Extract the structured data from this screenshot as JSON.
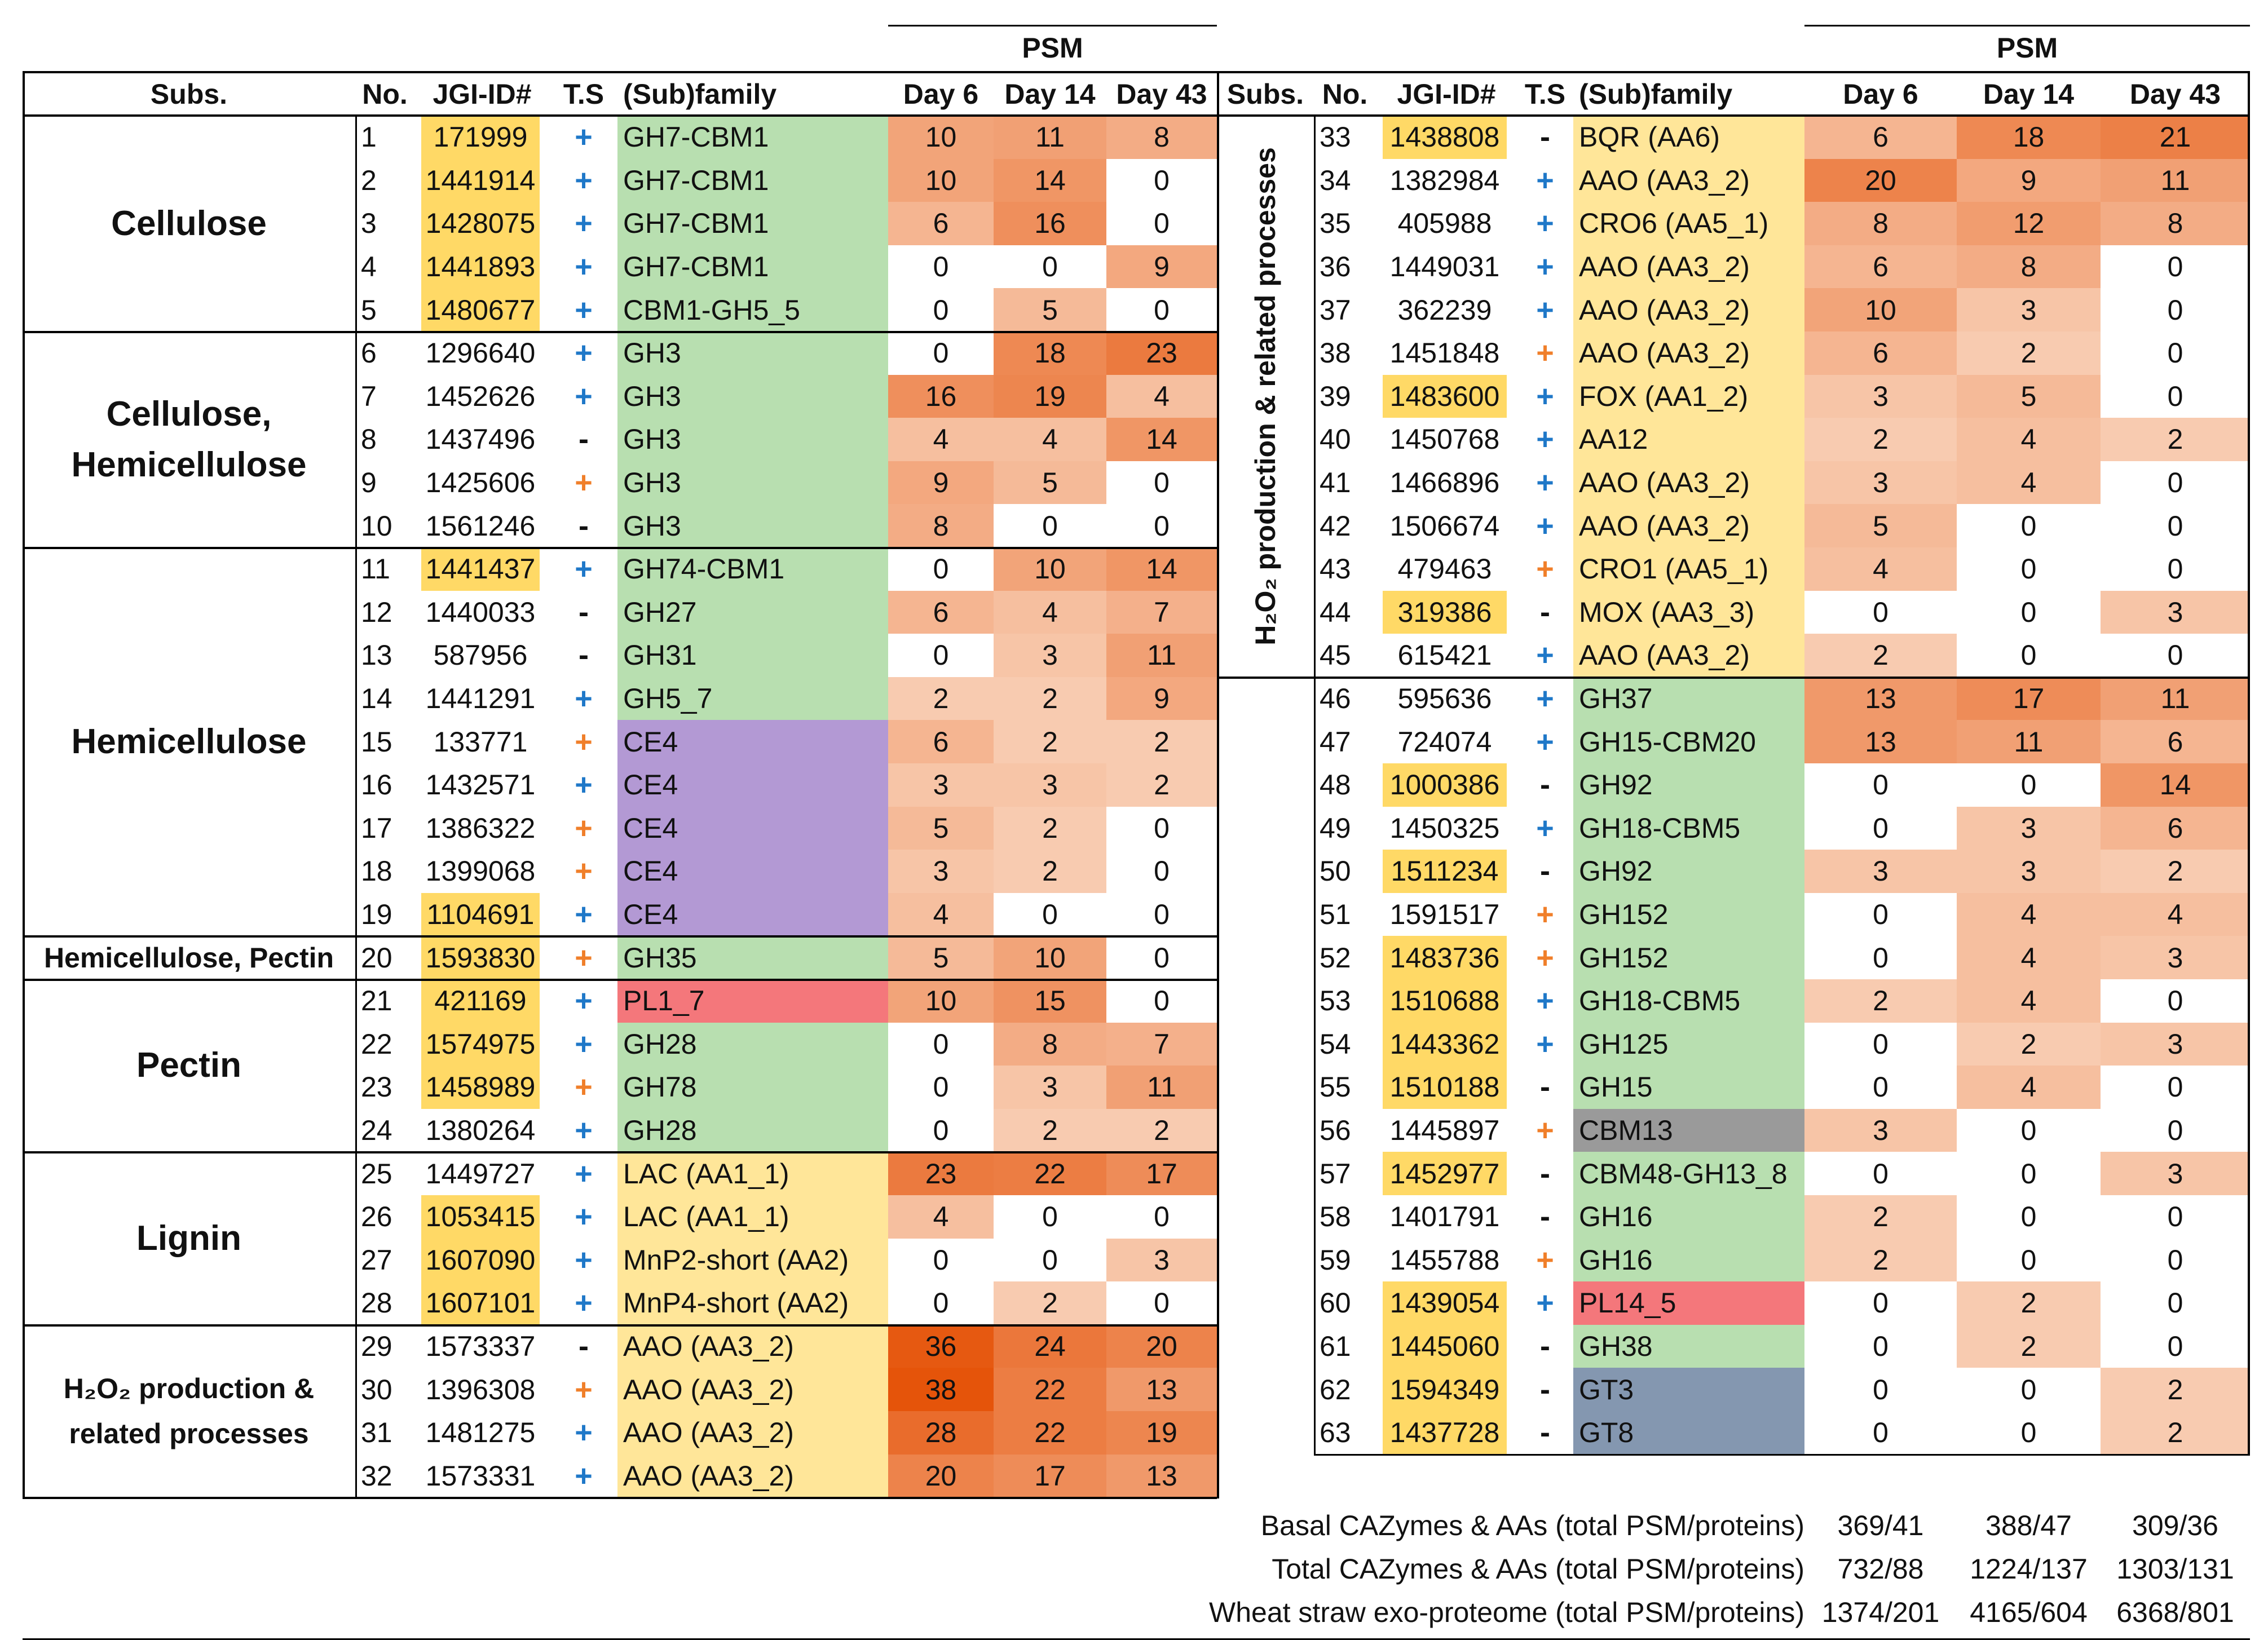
{
  "header": {
    "psm": "PSM",
    "subs": "Subs.",
    "no": "No.",
    "jgi": "JGI-ID#",
    "ts": "T.S",
    "family": "(Sub)family",
    "day6": "Day 6",
    "day14": "Day 14",
    "day43": "Day 43"
  },
  "left_groups": [
    {
      "label": "Cellulose",
      "first_row": 0,
      "rows": 5
    },
    {
      "label": "Cellulose,\nHemicellulose",
      "first_row": 5,
      "rows": 5
    },
    {
      "label": "Hemicellulose",
      "first_row": 10,
      "rows": 9
    },
    {
      "label": "Hemicellulose, Pectin",
      "first_row": 19,
      "rows": 1
    },
    {
      "label": "Pectin",
      "first_row": 20,
      "rows": 4
    },
    {
      "label": "Lignin",
      "first_row": 24,
      "rows": 4
    },
    {
      "label": "H₂O₂ production &\nrelated processes",
      "first_row": 28,
      "rows": 4
    }
  ],
  "right_group_label": "H₂O₂ production & related processes",
  "colors": {
    "id_highlight": "#ffd966",
    "blue_sign": "#1f78c8",
    "orange_sign": "#f07f2a",
    "fam_green": "#b8dfb0",
    "fam_purple": "#b399d4",
    "fam_red": "#f4777b",
    "fam_yellow": "#ffe699",
    "fam_gray": "#9a9a9a",
    "fam_blue": "#8497b0",
    "heat_max": "#e5540a"
  },
  "left_rows": [
    {
      "no": "1",
      "jgi": "171999",
      "hl": true,
      "ts": "+",
      "tsc": "blue",
      "fam": "GH7-CBM1",
      "fc": "green",
      "d6": "10",
      "d14": "11",
      "d43": "8"
    },
    {
      "no": "2",
      "jgi": "1441914",
      "hl": true,
      "ts": "+",
      "tsc": "blue",
      "fam": "GH7-CBM1",
      "fc": "green",
      "d6": "10",
      "d14": "14",
      "d43": "0"
    },
    {
      "no": "3",
      "jgi": "1428075",
      "hl": true,
      "ts": "+",
      "tsc": "blue",
      "fam": "GH7-CBM1",
      "fc": "green",
      "d6": "6",
      "d14": "16",
      "d43": "0"
    },
    {
      "no": "4",
      "jgi": "1441893",
      "hl": true,
      "ts": "+",
      "tsc": "blue",
      "fam": "GH7-CBM1",
      "fc": "green",
      "d6": "0",
      "d14": "0",
      "d43": "9"
    },
    {
      "no": "5",
      "jgi": "1480677",
      "hl": true,
      "ts": "+",
      "tsc": "blue",
      "fam": "CBM1-GH5_5",
      "fc": "green",
      "d6": "0",
      "d14": "5",
      "d43": "0"
    },
    {
      "no": "6",
      "jgi": "1296640",
      "hl": false,
      "ts": "+",
      "tsc": "blue",
      "fam": "GH3",
      "fc": "green",
      "d6": "0",
      "d14": "18",
      "d43": "23"
    },
    {
      "no": "7",
      "jgi": "1452626",
      "hl": false,
      "ts": "+",
      "tsc": "blue",
      "fam": "GH3",
      "fc": "green",
      "d6": "16",
      "d14": "19",
      "d43": "4"
    },
    {
      "no": "8",
      "jgi": "1437496",
      "hl": false,
      "ts": "-",
      "tsc": "black",
      "fam": "GH3",
      "fc": "green",
      "d6": "4",
      "d14": "4",
      "d43": "14"
    },
    {
      "no": "9",
      "jgi": "1425606",
      "hl": false,
      "ts": "+",
      "tsc": "orange",
      "fam": "GH3",
      "fc": "green",
      "d6": "9",
      "d14": "5",
      "d43": "0"
    },
    {
      "no": "10",
      "jgi": "1561246",
      "hl": false,
      "ts": "-",
      "tsc": "black",
      "fam": "GH3",
      "fc": "green",
      "d6": "8",
      "d14": "0",
      "d43": "0"
    },
    {
      "no": "11",
      "jgi": "1441437",
      "hl": true,
      "ts": "+",
      "tsc": "blue",
      "fam": "GH74-CBM1",
      "fc": "green",
      "d6": "0",
      "d14": "10",
      "d43": "14"
    },
    {
      "no": "12",
      "jgi": "1440033",
      "hl": false,
      "ts": "-",
      "tsc": "black",
      "fam": "GH27",
      "fc": "green",
      "d6": "6",
      "d14": "4",
      "d43": "7"
    },
    {
      "no": "13",
      "jgi": "587956",
      "hl": false,
      "ts": "-",
      "tsc": "black",
      "fam": "GH31",
      "fc": "green",
      "d6": "0",
      "d14": "3",
      "d43": "11"
    },
    {
      "no": "14",
      "jgi": "1441291",
      "hl": false,
      "ts": "+",
      "tsc": "blue",
      "fam": "GH5_7",
      "fc": "green",
      "d6": "2",
      "d14": "2",
      "d43": "9"
    },
    {
      "no": "15",
      "jgi": "133771",
      "hl": false,
      "ts": "+",
      "tsc": "orange",
      "fam": "CE4",
      "fc": "purple",
      "d6": "6",
      "d14": "2",
      "d43": "2"
    },
    {
      "no": "16",
      "jgi": "1432571",
      "hl": false,
      "ts": "+",
      "tsc": "blue",
      "fam": "CE4",
      "fc": "purple",
      "d6": "3",
      "d14": "3",
      "d43": "2"
    },
    {
      "no": "17",
      "jgi": "1386322",
      "hl": false,
      "ts": "+",
      "tsc": "orange",
      "fam": "CE4",
      "fc": "purple",
      "d6": "5",
      "d14": "2",
      "d43": "0"
    },
    {
      "no": "18",
      "jgi": "1399068",
      "hl": false,
      "ts": "+",
      "tsc": "orange",
      "fam": "CE4",
      "fc": "purple",
      "d6": "3",
      "d14": "2",
      "d43": "0"
    },
    {
      "no": "19",
      "jgi": "1104691",
      "hl": true,
      "ts": "+",
      "tsc": "blue",
      "fam": "CE4",
      "fc": "purple",
      "d6": "4",
      "d14": "0",
      "d43": "0"
    },
    {
      "no": "20",
      "jgi": "1593830",
      "hl": true,
      "ts": "+",
      "tsc": "orange",
      "fam": "GH35",
      "fc": "green",
      "d6": "5",
      "d14": "10",
      "d43": "0"
    },
    {
      "no": "21",
      "jgi": "421169",
      "hl": true,
      "ts": "+",
      "tsc": "blue",
      "fam": "PL1_7",
      "fc": "red",
      "d6": "10",
      "d14": "15",
      "d43": "0"
    },
    {
      "no": "22",
      "jgi": "1574975",
      "hl": true,
      "ts": "+",
      "tsc": "blue",
      "fam": "GH28",
      "fc": "green",
      "d6": "0",
      "d14": "8",
      "d43": "7"
    },
    {
      "no": "23",
      "jgi": "1458989",
      "hl": true,
      "ts": "+",
      "tsc": "orange",
      "fam": "GH78",
      "fc": "green",
      "d6": "0",
      "d14": "3",
      "d43": "11"
    },
    {
      "no": "24",
      "jgi": "1380264",
      "hl": false,
      "ts": "+",
      "tsc": "blue",
      "fam": "GH28",
      "fc": "green",
      "d6": "0",
      "d14": "2",
      "d43": "2"
    },
    {
      "no": "25",
      "jgi": "1449727",
      "hl": false,
      "ts": "+",
      "tsc": "blue",
      "fam": "LAC (AA1_1)",
      "fc": "yellow",
      "d6": "23",
      "d14": "22",
      "d43": "17"
    },
    {
      "no": "26",
      "jgi": "1053415",
      "hl": true,
      "ts": "+",
      "tsc": "blue",
      "fam": "LAC (AA1_1)",
      "fc": "yellow",
      "d6": "4",
      "d14": "0",
      "d43": "0"
    },
    {
      "no": "27",
      "jgi": "1607090",
      "hl": true,
      "ts": "+",
      "tsc": "blue",
      "fam": "MnP2-short (AA2)",
      "fc": "yellow",
      "d6": "0",
      "d14": "0",
      "d43": "3"
    },
    {
      "no": "28",
      "jgi": "1607101",
      "hl": true,
      "ts": "+",
      "tsc": "blue",
      "fam": "MnP4-short (AA2)",
      "fc": "yellow",
      "d6": "0",
      "d14": "2",
      "d43": "0"
    },
    {
      "no": "29",
      "jgi": "1573337",
      "hl": false,
      "ts": "-",
      "tsc": "black",
      "fam": "AAO (AA3_2)",
      "fc": "yellow",
      "d6": "36",
      "d14": "24",
      "d43": "20"
    },
    {
      "no": "30",
      "jgi": "1396308",
      "hl": false,
      "ts": "+",
      "tsc": "orange",
      "fam": "AAO (AA3_2)",
      "fc": "yellow",
      "d6": "38",
      "d14": "22",
      "d43": "13"
    },
    {
      "no": "31",
      "jgi": "1481275",
      "hl": false,
      "ts": "+",
      "tsc": "blue",
      "fam": "AAO (AA3_2)",
      "fc": "yellow",
      "d6": "28",
      "d14": "22",
      "d43": "19"
    },
    {
      "no": "32",
      "jgi": "1573331",
      "hl": false,
      "ts": "+",
      "tsc": "blue",
      "fam": "AAO (AA3_2)",
      "fc": "yellow",
      "d6": "20",
      "d14": "17",
      "d43": "13"
    }
  ],
  "right_rows": [
    {
      "no": "33",
      "jgi": "1438808",
      "hl": true,
      "ts": "-",
      "tsc": "black",
      "fam": "BQR (AA6)",
      "fc": "yellow",
      "d6": "6",
      "d14": "18",
      "d43": "21"
    },
    {
      "no": "34",
      "jgi": "1382984",
      "hl": false,
      "ts": "+",
      "tsc": "blue",
      "fam": "AAO (AA3_2)",
      "fc": "yellow",
      "d6": "20",
      "d14": "9",
      "d43": "11"
    },
    {
      "no": "35",
      "jgi": "405988",
      "hl": false,
      "ts": "+",
      "tsc": "blue",
      "fam": "CRO6 (AA5_1)",
      "fc": "yellow",
      "d6": "8",
      "d14": "12",
      "d43": "8"
    },
    {
      "no": "36",
      "jgi": "1449031",
      "hl": false,
      "ts": "+",
      "tsc": "blue",
      "fam": "AAO (AA3_2)",
      "fc": "yellow",
      "d6": "6",
      "d14": "8",
      "d43": "0"
    },
    {
      "no": "37",
      "jgi": "362239",
      "hl": false,
      "ts": "+",
      "tsc": "blue",
      "fam": "AAO (AA3_2)",
      "fc": "yellow",
      "d6": "10",
      "d14": "3",
      "d43": "0"
    },
    {
      "no": "38",
      "jgi": "1451848",
      "hl": false,
      "ts": "+",
      "tsc": "orange",
      "fam": "AAO (AA3_2)",
      "fc": "yellow",
      "d6": "6",
      "d14": "2",
      "d43": "0"
    },
    {
      "no": "39",
      "jgi": "1483600",
      "hl": true,
      "ts": "+",
      "tsc": "blue",
      "fam": "FOX (AA1_2)",
      "fc": "yellow",
      "d6": "3",
      "d14": "5",
      "d43": "0"
    },
    {
      "no": "40",
      "jgi": "1450768",
      "hl": false,
      "ts": "+",
      "tsc": "blue",
      "fam": "AA12",
      "fc": "yellow",
      "d6": "2",
      "d14": "4",
      "d43": "2"
    },
    {
      "no": "41",
      "jgi": "1466896",
      "hl": false,
      "ts": "+",
      "tsc": "blue",
      "fam": "AAO (AA3_2)",
      "fc": "yellow",
      "d6": "3",
      "d14": "4",
      "d43": "0"
    },
    {
      "no": "42",
      "jgi": "1506674",
      "hl": false,
      "ts": "+",
      "tsc": "blue",
      "fam": "AAO (AA3_2)",
      "fc": "yellow",
      "d6": "5",
      "d14": "0",
      "d43": "0"
    },
    {
      "no": "43",
      "jgi": "479463",
      "hl": false,
      "ts": "+",
      "tsc": "orange",
      "fam": "CRO1 (AA5_1)",
      "fc": "yellow",
      "d6": "4",
      "d14": "0",
      "d43": "0"
    },
    {
      "no": "44",
      "jgi": "319386",
      "hl": true,
      "ts": "-",
      "tsc": "black",
      "fam": "MOX (AA3_3)",
      "fc": "yellow",
      "d6": "0",
      "d14": "0",
      "d43": "3"
    },
    {
      "no": "45",
      "jgi": "615421",
      "hl": false,
      "ts": "+",
      "tsc": "blue",
      "fam": "AAO (AA3_2)",
      "fc": "yellow",
      "d6": "2",
      "d14": "0",
      "d43": "0"
    },
    {
      "no": "46",
      "jgi": "595636",
      "hl": false,
      "ts": "+",
      "tsc": "blue",
      "fam": "GH37",
      "fc": "green",
      "d6": "13",
      "d14": "17",
      "d43": "11"
    },
    {
      "no": "47",
      "jgi": "724074",
      "hl": false,
      "ts": "+",
      "tsc": "blue",
      "fam": "GH15-CBM20",
      "fc": "green",
      "d6": "13",
      "d14": "11",
      "d43": "6"
    },
    {
      "no": "48",
      "jgi": "1000386",
      "hl": true,
      "ts": "-",
      "tsc": "black",
      "fam": "GH92",
      "fc": "green",
      "d6": "0",
      "d14": "0",
      "d43": "14"
    },
    {
      "no": "49",
      "jgi": "1450325",
      "hl": false,
      "ts": "+",
      "tsc": "blue",
      "fam": "GH18-CBM5",
      "fc": "green",
      "d6": "0",
      "d14": "3",
      "d43": "6"
    },
    {
      "no": "50",
      "jgi": "1511234",
      "hl": true,
      "ts": "-",
      "tsc": "black",
      "fam": "GH92",
      "fc": "green",
      "d6": "3",
      "d14": "3",
      "d43": "2"
    },
    {
      "no": "51",
      "jgi": "1591517",
      "hl": false,
      "ts": "+",
      "tsc": "orange",
      "fam": "GH152",
      "fc": "green",
      "d6": "0",
      "d14": "4",
      "d43": "4"
    },
    {
      "no": "52",
      "jgi": "1483736",
      "hl": true,
      "ts": "+",
      "tsc": "orange",
      "fam": "GH152",
      "fc": "green",
      "d6": "0",
      "d14": "4",
      "d43": "3"
    },
    {
      "no": "53",
      "jgi": "1510688",
      "hl": true,
      "ts": "+",
      "tsc": "blue",
      "fam": "GH18-CBM5",
      "fc": "green",
      "d6": "2",
      "d14": "4",
      "d43": "0"
    },
    {
      "no": "54",
      "jgi": "1443362",
      "hl": true,
      "ts": "+",
      "tsc": "blue",
      "fam": "GH125",
      "fc": "green",
      "d6": "0",
      "d14": "2",
      "d43": "3"
    },
    {
      "no": "55",
      "jgi": "1510188",
      "hl": true,
      "ts": "-",
      "tsc": "black",
      "fam": "GH15",
      "fc": "green",
      "d6": "0",
      "d14": "4",
      "d43": "0"
    },
    {
      "no": "56",
      "jgi": "1445897",
      "hl": false,
      "ts": "+",
      "tsc": "orange",
      "fam": "CBM13",
      "fc": "gray",
      "d6": "3",
      "d14": "0",
      "d43": "0"
    },
    {
      "no": "57",
      "jgi": "1452977",
      "hl": true,
      "ts": "-",
      "tsc": "black",
      "fam": "CBM48-GH13_8",
      "fc": "green",
      "d6": "0",
      "d14": "0",
      "d43": "3"
    },
    {
      "no": "58",
      "jgi": "1401791",
      "hl": false,
      "ts": "-",
      "tsc": "black",
      "fam": "GH16",
      "fc": "green",
      "d6": "2",
      "d14": "0",
      "d43": "0"
    },
    {
      "no": "59",
      "jgi": "1455788",
      "hl": false,
      "ts": "+",
      "tsc": "orange",
      "fam": "GH16",
      "fc": "green",
      "d6": "2",
      "d14": "0",
      "d43": "0"
    },
    {
      "no": "60",
      "jgi": "1439054",
      "hl": true,
      "ts": "+",
      "tsc": "blue",
      "fam": "PL14_5",
      "fc": "red",
      "d6": "0",
      "d14": "2",
      "d43": "0"
    },
    {
      "no": "61",
      "jgi": "1445060",
      "hl": true,
      "ts": "-",
      "tsc": "black",
      "fam": "GH38",
      "fc": "green",
      "d6": "0",
      "d14": "2",
      "d43": "0"
    },
    {
      "no": "62",
      "jgi": "1594349",
      "hl": true,
      "ts": "-",
      "tsc": "black",
      "fam": "GT3",
      "fc": "blue",
      "d6": "0",
      "d14": "0",
      "d43": "2"
    },
    {
      "no": "63",
      "jgi": "1437728",
      "hl": true,
      "ts": "-",
      "tsc": "black",
      "fam": "GT8",
      "fc": "blue",
      "d6": "0",
      "d14": "0",
      "d43": "2"
    }
  ],
  "summary": [
    {
      "label": "Basal CAZymes & AAs (total PSM/proteins)",
      "d6": "369/41",
      "d14": "388/47",
      "d43": "309/36"
    },
    {
      "label": "Total CAZymes & AAs (total PSM/proteins)",
      "d6": "732/88",
      "d14": "1224/137",
      "d43": "1303/131"
    },
    {
      "label": "Wheat straw exo-proteome (total PSM/proteins)",
      "d6": "1374/201",
      "d14": "4165/604",
      "d43": "6368/801"
    }
  ]
}
